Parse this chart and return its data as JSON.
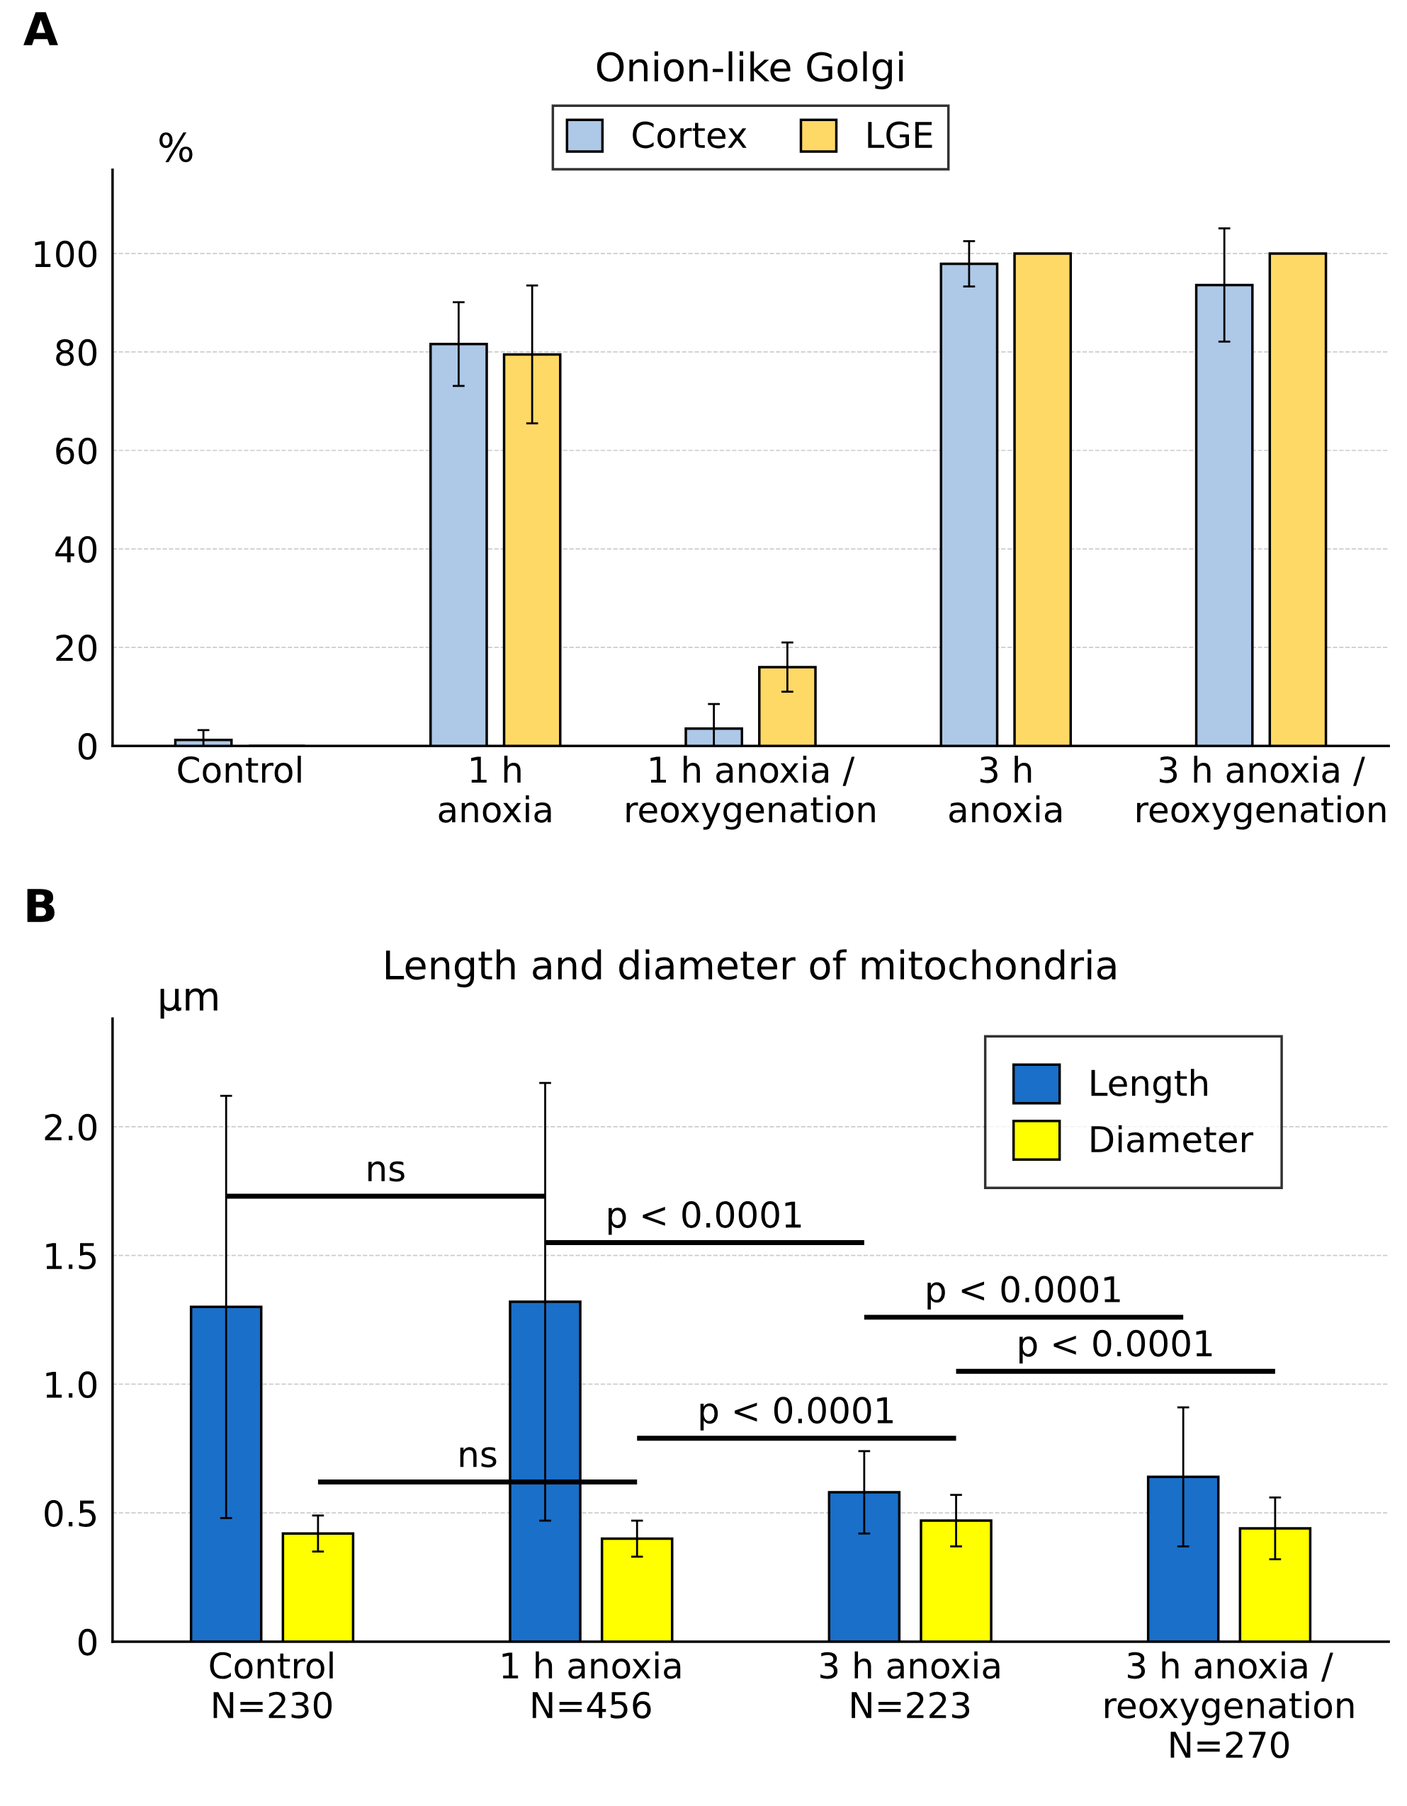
{
  "chart_data": [
    {
      "type": "bar",
      "title": "Onion-like Golgi",
      "ylabel": "%",
      "annotations": [
        "A"
      ],
      "categories": [
        "Control",
        "1 h\nanoxia",
        "1 h anoxia /\nreoxygenation",
        "3 h\nanoxia",
        "3 h anoxia /\nreoxygenation"
      ],
      "series": [
        {
          "name": "Cortex",
          "color": "#aec8e8",
          "values": [
            1.2,
            81.6,
            3.5,
            97.9,
            93.6
          ],
          "errors": [
            2,
            8.5,
            5,
            4.6,
            11.5
          ]
        },
        {
          "name": "LGE",
          "color": "#ffd966",
          "values": [
            0,
            79.5,
            16,
            100,
            100
          ],
          "errors": [
            null,
            14,
            5,
            null,
            null
          ]
        }
      ],
      "ylim": [
        0,
        117
      ],
      "yticks": [
        0,
        20,
        40,
        60,
        80,
        100
      ],
      "grid": "y",
      "legend": "top"
    },
    {
      "type": "bar",
      "title": "Length and diameter of mitochondria",
      "ylabel": "μm",
      "annotations": [
        "B",
        "ns",
        "p < 0.0001",
        "p < 0.0001",
        "p < 0.0001",
        "p < 0.0001",
        "ns"
      ],
      "categories": [
        "Control\nN=230",
        "1 h anoxia\nN=456",
        "3 h anoxia\nN=223",
        "3 h anoxia /\nreoxygenation\nN=270"
      ],
      "series": [
        {
          "name": "Length",
          "color": "#1a6fc9",
          "values": [
            1.3,
            1.32,
            0.58,
            0.64
          ],
          "errors": [
            0.82,
            0.85,
            0.16,
            0.27
          ]
        },
        {
          "name": "Diameter",
          "color": "#ffff00",
          "values": [
            0.42,
            0.4,
            0.47,
            0.44
          ],
          "errors": [
            0.07,
            0.07,
            0.1,
            0.12
          ]
        }
      ],
      "ylim": [
        0,
        2.42
      ],
      "yticks": [
        0,
        {
          "value": 0.5,
          "label": "0.5"
        },
        {
          "value": 1.0,
          "label": "1.0"
        },
        {
          "value": 1.5,
          "label": "1.5"
        },
        {
          "value": 2.0,
          "label": "2.0"
        }
      ],
      "grid": "y",
      "legend": "top right"
    }
  ]
}
